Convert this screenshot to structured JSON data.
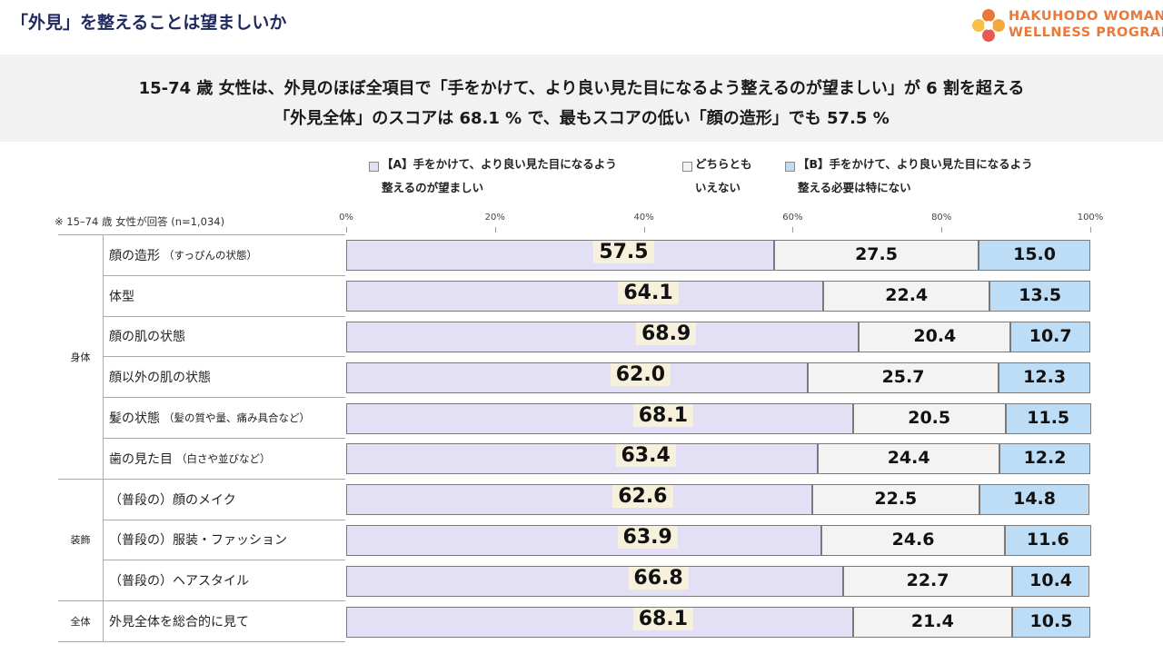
{
  "page_title": "「外見」を整えることは望ましいか",
  "brand": {
    "line1": "HAKUHODO WOMAN",
    "line2": "WELLNESS PROGRAM",
    "color": "#e8793a"
  },
  "headline": {
    "line1": "15-74 歳 女性は、外見のほぼ全項目で「手をかけて、より良い見た目になるよう整えるのが望ましい」が 6 割を超える",
    "line2": "「外見全体」のスコアは 68.1 % で、最もスコアの低い「顔の造形」でも 57.5 %"
  },
  "note": "※ 15–74 歳 女性が回答 (n=1,034)",
  "chart_data": {
    "type": "bar",
    "orientation": "horizontal",
    "stacked": true,
    "xlim": [
      0,
      100
    ],
    "x_ticks": [
      "0%",
      "20%",
      "40%",
      "60%",
      "80%",
      "100%"
    ],
    "legend": [
      {
        "line1": "【A】手をかけて、より良い見た目になるよう",
        "line2": "整えるのが望ましい",
        "color": "#e3e0f5"
      },
      {
        "line1": "どちらとも",
        "line2": "いえない",
        "color": "#f3f3f3"
      },
      {
        "line1": "【B】手をかけて、より良い見た目になるよう",
        "line2": "整える必要は特にない",
        "color": "#bddcf5"
      }
    ],
    "groups": [
      {
        "name": "身体",
        "count": 6
      },
      {
        "name": "装飾",
        "count": 3
      },
      {
        "name": "全体",
        "count": 1
      }
    ],
    "categories": [
      {
        "label": "顔の造形",
        "sub": "（すっぴんの状態）"
      },
      {
        "label": "体型",
        "sub": ""
      },
      {
        "label": "顔の肌の状態",
        "sub": ""
      },
      {
        "label": "顔以外の肌の状態",
        "sub": ""
      },
      {
        "label": "髪の状態",
        "sub": "（髪の質や量、痛み具合など）"
      },
      {
        "label": "歯の見た目",
        "sub": "（白さや並びなど）"
      },
      {
        "label": "（普段の）顔のメイク",
        "sub": ""
      },
      {
        "label": "（普段の）服装・ファッション",
        "sub": ""
      },
      {
        "label": "（普段の）ヘアスタイル",
        "sub": ""
      },
      {
        "label": "外見全体を総合的に見て",
        "sub": ""
      }
    ],
    "series": [
      {
        "name": "【A】手をかけて、より良い見た目になるよう整えるのが望ましい",
        "values": [
          "57.5",
          "64.1",
          "68.9",
          "62.0",
          "68.1",
          "63.4",
          "62.6",
          "63.9",
          "66.8",
          "68.1"
        ]
      },
      {
        "name": "どちらともいえない",
        "values": [
          "27.5",
          "22.4",
          "20.4",
          "25.7",
          "20.5",
          "24.4",
          "22.5",
          "24.6",
          "22.7",
          "21.4"
        ]
      },
      {
        "name": "【B】手をかけて、より良い見た目になるよう整える必要は特にない",
        "values": [
          "15.0",
          "13.5",
          "10.7",
          "12.3",
          "11.5",
          "12.2",
          "14.8",
          "11.6",
          "10.4",
          "10.5"
        ]
      }
    ]
  }
}
